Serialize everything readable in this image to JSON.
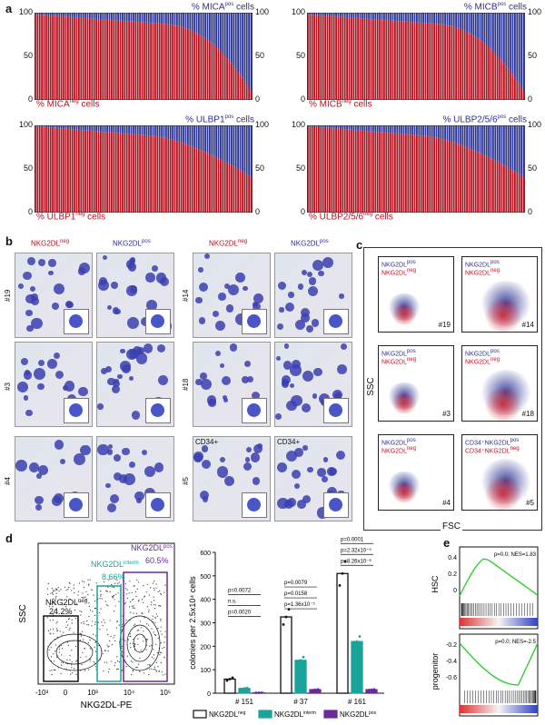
{
  "panel_a": {
    "letter": "a",
    "charts": [
      {
        "id": "mica",
        "top_label": "% MICA",
        "top_sup": "pos",
        "top_suffix": " cells",
        "bottom_label": "% MICA",
        "bottom_sup": "neg",
        "bottom_suffix": " cells",
        "left_ticks": [
          "100",
          "50",
          "0"
        ],
        "right_ticks": [
          "100",
          "50",
          "0"
        ]
      },
      {
        "id": "micb",
        "top_label": "% MICB",
        "top_sup": "pos",
        "top_suffix": " cells",
        "bottom_label": "% MICB",
        "bottom_sup": "neg",
        "bottom_suffix": " cells",
        "left_ticks": [
          "100",
          "50",
          "0"
        ],
        "right_ticks": [
          "100",
          "50",
          "0"
        ]
      },
      {
        "id": "ulbp1",
        "top_label": "% ULBP1",
        "top_sup": "pos",
        "top_suffix": " cells",
        "bottom_label": "% ULBP1",
        "bottom_sup": "neg",
        "bottom_suffix": " cells",
        "left_ticks": [
          "100",
          "50",
          "0"
        ],
        "right_ticks": [
          "100",
          "50",
          "0"
        ]
      },
      {
        "id": "ulbp256",
        "top_label": "% ULBP2/5/6",
        "top_sup": "pos",
        "top_suffix": " cells",
        "bottom_label": "% ULBP2/5/6",
        "bottom_sup": "neg",
        "bottom_suffix": " cells",
        "left_ticks": [
          "100",
          "50",
          "0"
        ],
        "right_ticks": [
          "100",
          "50",
          "0"
        ]
      }
    ],
    "colors": {
      "neg": "#b51220",
      "pos": "#2c3494"
    }
  },
  "panel_b": {
    "letter": "b",
    "col_labels": [
      {
        "text": "NKG2DL",
        "sup": "neg",
        "color": "#b01020"
      },
      {
        "text": "NKG2DL",
        "sup": "pos",
        "color": "#2b2f8c"
      },
      {
        "text": "NKG2DL",
        "sup": "neg",
        "color": "#b01020"
      },
      {
        "text": "NKG2DL",
        "sup": "pos",
        "color": "#2b2f8c"
      }
    ],
    "rows_left": [
      "#19",
      "#3",
      "#4"
    ],
    "rows_right": [
      "#14",
      "#18",
      "#5"
    ],
    "cd34_labels": [
      "CD34+",
      "CD34+"
    ]
  },
  "panel_c": {
    "letter": "c",
    "y_label": "SSC",
    "x_label": "FSC",
    "plots": [
      {
        "l1": "NKG2DL",
        "l1s": "pos",
        "l2": "NKG2DL",
        "l2s": "neg",
        "id": "#19"
      },
      {
        "l1": "NKG2DL",
        "l1s": "pos",
        "l2": "NKG2DL",
        "l2s": "neg",
        "id": "#14"
      },
      {
        "l1": "NKG2DL",
        "l1s": "pos",
        "l2": "NKG2DL",
        "l2s": "neg",
        "id": "#3"
      },
      {
        "l1": "NKG2DL",
        "l1s": "pos",
        "l2": "NKG2DL",
        "l2s": "neg",
        "id": "#18"
      },
      {
        "l1": "NKG2DL",
        "l1s": "pos",
        "l2": "NKG2DL",
        "l2s": "neg",
        "id": "#4"
      },
      {
        "l1": "CD34⁺NKG2DL",
        "l1s": "pos",
        "l2": "CD34⁺NKG2DL",
        "l2s": "neg",
        "id": "#5"
      }
    ]
  },
  "panel_d": {
    "letter": "d",
    "flow": {
      "y_label": "SSC",
      "x_label": "NKG2DL-PE",
      "gates": [
        {
          "name": "NKG2DL",
          "sup": "neg",
          "pct": "24.2%",
          "color": "#111111"
        },
        {
          "name": "NKG2DL",
          "sup": "interm",
          "pct": "8.66%",
          "color": "#1aa39a"
        },
        {
          "name": "NKG2DL",
          "sup": "pos",
          "pct": "60.5%",
          "color": "#6a2a9a"
        }
      ],
      "x_ticks": [
        "-10³",
        "0",
        "10³",
        "10⁴",
        "10⁵"
      ]
    },
    "colonies": {
      "y_label": "colonies per 2.5x10⁴ cells",
      "y_ticks": [
        "0",
        "100",
        "200",
        "300",
        "400",
        "500",
        "600"
      ],
      "groups": [
        "# 151",
        "# 37",
        "# 161"
      ],
      "pvals": {
        "g151": [
          "p=0.0020",
          "n.s.",
          "p=0.0072"
        ],
        "g37": [
          "p=1.36x10⁻⁵",
          "p=0.0158",
          "p=0.0079"
        ],
        "g161": [
          "p=8.26x10⁻⁶",
          "p=2.32x10⁻⁵",
          "p=0.0001"
        ]
      },
      "legend": [
        {
          "text": "NKG2DL",
          "sup": "neg",
          "color": "#ffffff",
          "border": "#111111"
        },
        {
          "text": "NKG2DL",
          "sup": "interm",
          "color": "#1aa39a",
          "border": "#1aa39a"
        },
        {
          "text": "NKG2DL",
          "sup": "pos",
          "color": "#6a2a9a",
          "border": "#6a2a9a"
        }
      ]
    }
  },
  "panel_e": {
    "letter": "e",
    "plots": [
      {
        "label": "HSC",
        "stat": "p=0.0; NES=1.83",
        "ticks": [
          "0.4",
          "0.2",
          "0"
        ]
      },
      {
        "label": "progenitor",
        "stat": "p=0.0; NES=-2.5",
        "ticks": [
          "-0.2",
          "-0.4",
          "-0.6"
        ]
      }
    ]
  },
  "chart_data": [
    {
      "type": "bar",
      "title": "% MICA pos cells",
      "ylim": [
        0,
        100
      ],
      "series": [
        {
          "name": "% MICA neg cells",
          "trend": "descending from 98 to 10"
        }
      ]
    },
    {
      "type": "bar",
      "title": "% MICB pos cells",
      "ylim": [
        0,
        100
      ],
      "series": [
        {
          "name": "% MICB neg cells",
          "trend": "descending from 99 to 10"
        }
      ]
    },
    {
      "type": "bar",
      "title": "% ULBP1 pos cells",
      "ylim": [
        0,
        100
      ],
      "series": [
        {
          "name": "% ULBP1 neg cells",
          "trend": "descending from 99 to 40"
        }
      ]
    },
    {
      "type": "bar",
      "title": "% ULBP2/5/6 pos cells",
      "ylim": [
        0,
        100
      ],
      "series": [
        {
          "name": "% ULBP2/5/6 neg cells",
          "trend": "descending from 99 to 40"
        }
      ]
    },
    {
      "type": "bar",
      "title": "colonies",
      "categories": [
        "# 151",
        "# 37",
        "# 161"
      ],
      "ylim": [
        0,
        600
      ],
      "series": [
        {
          "name": "NKG2DL neg",
          "values": [
            60,
            325,
            510
          ]
        },
        {
          "name": "NKG2DL interm",
          "values": [
            20,
            140,
            220
          ]
        },
        {
          "name": "NKG2DL pos",
          "values": [
            2,
            15,
            15
          ]
        }
      ]
    }
  ]
}
